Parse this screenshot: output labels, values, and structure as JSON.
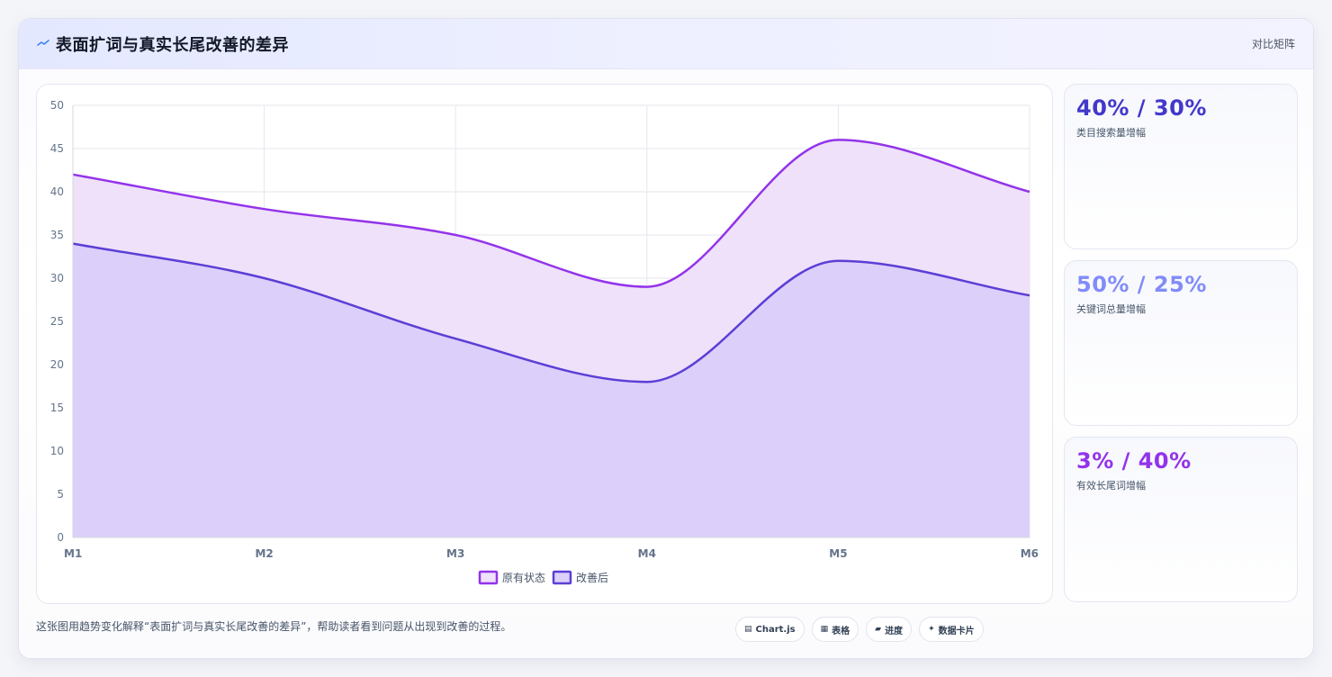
{
  "header": {
    "title": "表面扩词与真实长尾改善的差异",
    "right_label": "对比矩阵",
    "icon": "sparkline-icon"
  },
  "stats": [
    {
      "value": "40% / 30%",
      "label": "类目搜索量增幅",
      "color": "#4338ca"
    },
    {
      "value": "50% / 25%",
      "label": "关键词总量增幅",
      "color": "#818cf8"
    },
    {
      "value": "3% / 40%",
      "label": "有效长尾词增幅",
      "color": "#9333ea"
    }
  ],
  "footer": {
    "text": "这张图用趋势变化解释“表面扩词与真实长尾改善的差异”，帮助读者看到问题从出现到改善的过程。",
    "chips": [
      {
        "icon": "▤",
        "label": "Chart.js"
      },
      {
        "icon": "▦",
        "label": "表格"
      },
      {
        "icon": "▰",
        "label": "进度"
      },
      {
        "icon": "✦",
        "label": "数据卡片"
      }
    ]
  },
  "chart_data": {
    "type": "area",
    "categories": [
      "M1",
      "M2",
      "M3",
      "M4",
      "M5",
      "M6"
    ],
    "series": [
      {
        "name": "原有状态",
        "values": [
          42,
          38,
          35,
          29,
          46,
          40
        ],
        "color": "#9333ea",
        "fill": "#efe1f9"
      },
      {
        "name": "改善后",
        "values": [
          34,
          30,
          23,
          18,
          32,
          28
        ],
        "color": "#5b3fd6",
        "fill": "#dccffa"
      }
    ],
    "ylim": [
      0,
      50
    ],
    "yticks": [
      0,
      5,
      10,
      15,
      20,
      25,
      30,
      35,
      40,
      45,
      50
    ],
    "grid": true,
    "legend": "bottom-center",
    "title": "",
    "xlabel": "",
    "ylabel": ""
  }
}
